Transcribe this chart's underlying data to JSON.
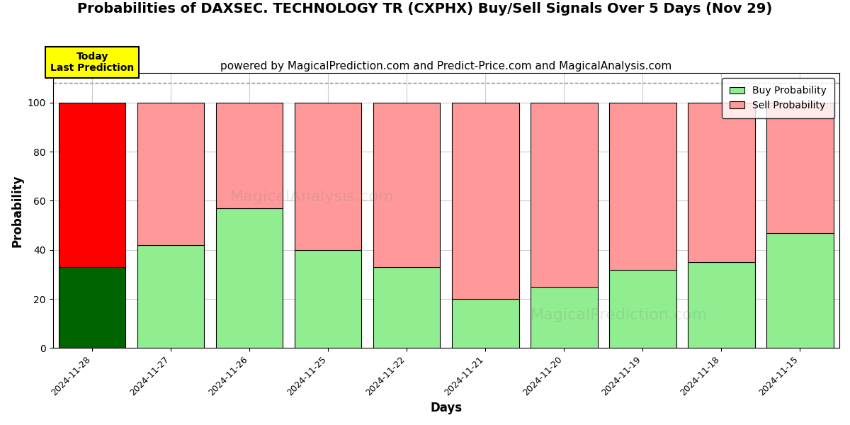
{
  "title": "Probabilities of DAXSEC. TECHNOLOGY TR (CXPHX) Buy/Sell Signals Over 5 Days (Nov 29)",
  "subtitle": "powered by MagicalPrediction.com and Predict-Price.com and MagicalAnalysis.com",
  "xlabel": "Days",
  "ylabel": "Probability",
  "dates": [
    "2024-11-28",
    "2024-11-27",
    "2024-11-26",
    "2024-11-25",
    "2024-11-22",
    "2024-11-21",
    "2024-11-20",
    "2024-11-19",
    "2024-11-18",
    "2024-11-15"
  ],
  "buy_probs": [
    33,
    42,
    57,
    40,
    33,
    20,
    25,
    32,
    35,
    47
  ],
  "sell_probs": [
    67,
    58,
    43,
    60,
    67,
    80,
    75,
    68,
    65,
    53
  ],
  "buy_colors": [
    "#006400",
    "#90EE90",
    "#90EE90",
    "#90EE90",
    "#90EE90",
    "#90EE90",
    "#90EE90",
    "#90EE90",
    "#90EE90",
    "#90EE90"
  ],
  "sell_colors": [
    "#FF0000",
    "#FF9999",
    "#FF9999",
    "#FF9999",
    "#FF9999",
    "#FF9999",
    "#FF9999",
    "#FF9999",
    "#FF9999",
    "#FF9999"
  ],
  "bar_edge_color": "black",
  "bar_linewidth": 0.8,
  "today_box_color": "#FFFF00",
  "today_box_text": "Today\nLast Prediction",
  "ylim": [
    0,
    112
  ],
  "yticks": [
    0,
    20,
    40,
    60,
    80,
    100
  ],
  "grid_color": "#cccccc",
  "dashed_line_y": 108,
  "legend_buy_color": "#90EE90",
  "legend_sell_color": "#FF9999",
  "bg_color": "#ffffff",
  "title_fontsize": 14,
  "subtitle_fontsize": 11,
  "bar_width": 0.85
}
